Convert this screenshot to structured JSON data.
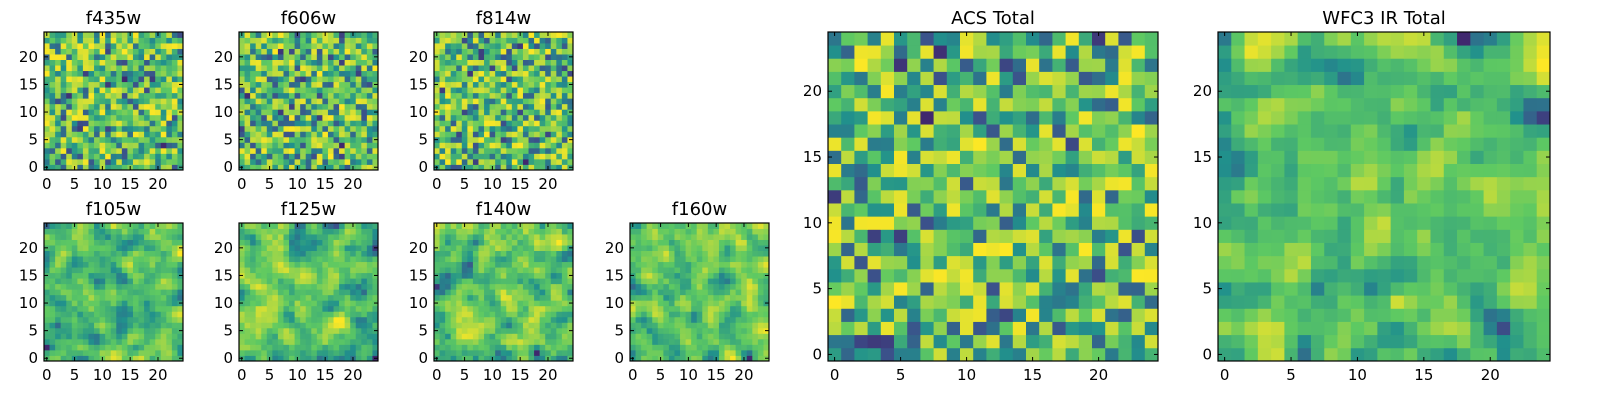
{
  "figure": {
    "colormap": "viridis",
    "colormap_stops": [
      "#440154",
      "#3b528b",
      "#21918c",
      "#5ec962",
      "#fde725"
    ]
  },
  "chart_data": [
    {
      "type": "heatmap",
      "id": "f435w",
      "title": "f435w",
      "grid": [
        25,
        25
      ],
      "xlim": [
        0,
        24
      ],
      "ylim": [
        0,
        24
      ],
      "xticks": [
        "0",
        "5",
        "10",
        "15",
        "20"
      ],
      "yticks": [
        "0",
        "5",
        "10",
        "15",
        "20"
      ],
      "xlabel": "",
      "ylabel": "",
      "seed": 11,
      "smooth": 0
    },
    {
      "type": "heatmap",
      "id": "f606w",
      "title": "f606w",
      "grid": [
        25,
        25
      ],
      "xlim": [
        0,
        24
      ],
      "ylim": [
        0,
        24
      ],
      "xticks": [
        "0",
        "5",
        "10",
        "15",
        "20"
      ],
      "yticks": [
        "0",
        "5",
        "10",
        "15",
        "20"
      ],
      "xlabel": "",
      "ylabel": "",
      "seed": 23,
      "smooth": 0
    },
    {
      "type": "heatmap",
      "id": "f814w",
      "title": "f814w",
      "grid": [
        25,
        25
      ],
      "xlim": [
        0,
        24
      ],
      "ylim": [
        0,
        24
      ],
      "xticks": [
        "0",
        "5",
        "10",
        "15",
        "20"
      ],
      "yticks": [
        "0",
        "5",
        "10",
        "15",
        "20"
      ],
      "xlabel": "",
      "ylabel": "",
      "seed": 37,
      "smooth": 0
    },
    {
      "type": "heatmap",
      "id": "f105w",
      "title": "f105w",
      "grid": [
        25,
        25
      ],
      "xlim": [
        0,
        24
      ],
      "ylim": [
        0,
        24
      ],
      "xticks": [
        "0",
        "5",
        "10",
        "15",
        "20"
      ],
      "yticks": [
        "0",
        "5",
        "10",
        "15",
        "20"
      ],
      "xlabel": "",
      "ylabel": "",
      "seed": 41,
      "smooth": 1
    },
    {
      "type": "heatmap",
      "id": "f125w",
      "title": "f125w",
      "grid": [
        25,
        25
      ],
      "xlim": [
        0,
        24
      ],
      "ylim": [
        0,
        24
      ],
      "xticks": [
        "0",
        "5",
        "10",
        "15",
        "20"
      ],
      "yticks": [
        "0",
        "5",
        "10",
        "15",
        "20"
      ],
      "xlabel": "",
      "ylabel": "",
      "seed": 53,
      "smooth": 1
    },
    {
      "type": "heatmap",
      "id": "f140w",
      "title": "f140w",
      "grid": [
        25,
        25
      ],
      "xlim": [
        0,
        24
      ],
      "ylim": [
        0,
        24
      ],
      "xticks": [
        "0",
        "5",
        "10",
        "15",
        "20"
      ],
      "yticks": [
        "0",
        "5",
        "10",
        "15",
        "20"
      ],
      "xlabel": "",
      "ylabel": "",
      "seed": 67,
      "smooth": 1
    },
    {
      "type": "heatmap",
      "id": "f160w",
      "title": "f160w",
      "grid": [
        25,
        25
      ],
      "xlim": [
        0,
        24
      ],
      "ylim": [
        0,
        24
      ],
      "xticks": [
        "0",
        "5",
        "10",
        "15",
        "20"
      ],
      "yticks": [
        "0",
        "5",
        "10",
        "15",
        "20"
      ],
      "xlabel": "",
      "ylabel": "",
      "seed": 79,
      "smooth": 1
    },
    {
      "type": "heatmap",
      "id": "acs-total",
      "title": "ACS Total",
      "grid": [
        25,
        25
      ],
      "xlim": [
        0,
        24
      ],
      "ylim": [
        0,
        24
      ],
      "xticks": [
        "0",
        "5",
        "10",
        "15",
        "20"
      ],
      "yticks": [
        "0",
        "5",
        "10",
        "15",
        "20"
      ],
      "xlabel": "",
      "ylabel": "",
      "seed": 97,
      "smooth": 0
    },
    {
      "type": "heatmap",
      "id": "wfc3-ir-total",
      "title": "WFC3 IR Total",
      "grid": [
        25,
        25
      ],
      "xlim": [
        0,
        24
      ],
      "ylim": [
        0,
        24
      ],
      "xticks": [
        "0",
        "5",
        "10",
        "15",
        "20"
      ],
      "yticks": [
        "0",
        "5",
        "10",
        "15",
        "20"
      ],
      "xlabel": "",
      "ylabel": "",
      "seed": 113,
      "smooth": 1
    }
  ]
}
